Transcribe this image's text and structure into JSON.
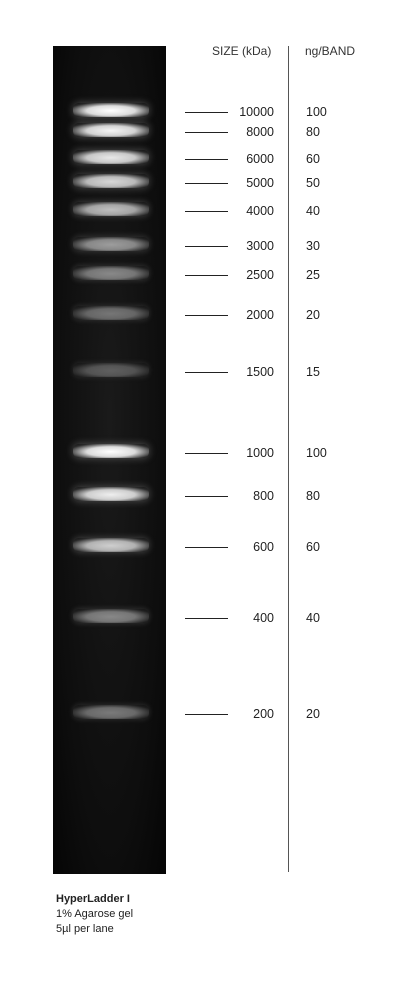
{
  "headers": {
    "size": "SIZE (kDa)",
    "ng": "ng/BAND"
  },
  "bands": [
    {
      "size": "10000",
      "ng": "100",
      "intensity": 1.0
    },
    {
      "size": "8000",
      "ng": "80",
      "intensity": 0.97
    },
    {
      "size": "6000",
      "ng": "60",
      "intensity": 0.93
    },
    {
      "size": "5000",
      "ng": "50",
      "intensity": 0.88
    },
    {
      "size": "4000",
      "ng": "40",
      "intensity": 0.8
    },
    {
      "size": "3000",
      "ng": "30",
      "intensity": 0.68
    },
    {
      "size": "2500",
      "ng": "25",
      "intensity": 0.6
    },
    {
      "size": "2000",
      "ng": "20",
      "intensity": 0.52
    },
    {
      "size": "1500",
      "ng": "15",
      "intensity": 0.42
    },
    {
      "size": "1000",
      "ng": "100",
      "intensity": 1.0
    },
    {
      "size": "800",
      "ng": "80",
      "intensity": 0.95
    },
    {
      "size": "600",
      "ng": "60",
      "intensity": 0.85
    },
    {
      "size": "400",
      "ng": "40",
      "intensity": 0.6
    },
    {
      "size": "200",
      "ng": "20",
      "intensity": 0.55
    }
  ],
  "caption": {
    "title": "HyperLadder I",
    "line1": "1% Agarose gel",
    "line2": "5µl per lane"
  }
}
